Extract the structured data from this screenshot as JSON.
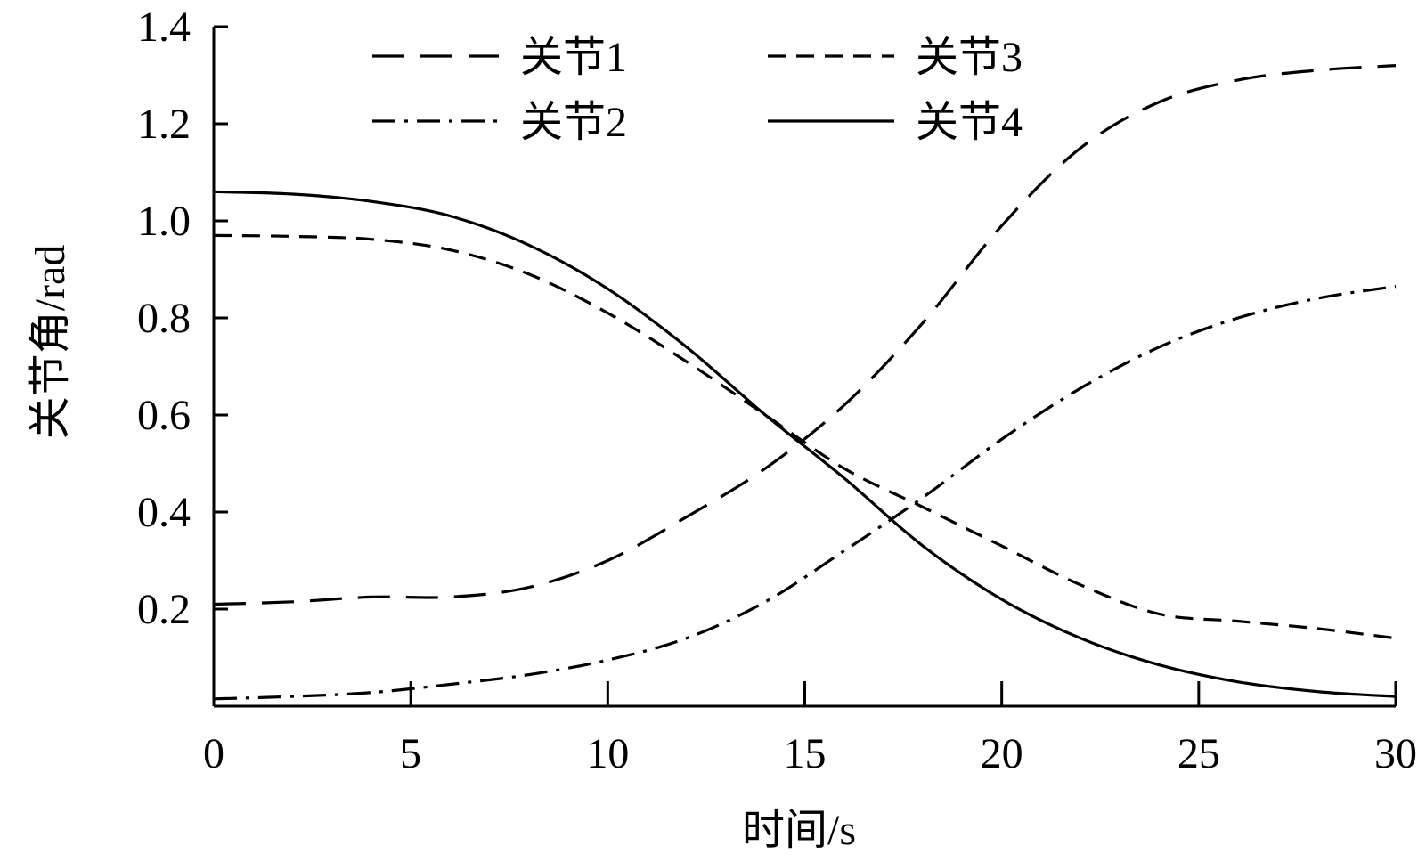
{
  "chart_data": {
    "type": "line",
    "title": "",
    "xlabel": "时间/s",
    "ylabel": "关节角/rad",
    "xlim": [
      0,
      30
    ],
    "ylim": [
      0,
      1.4
    ],
    "xticks": [
      0,
      5,
      10,
      15,
      20,
      25,
      30
    ],
    "xtick_labels": [
      "0",
      "5",
      "10",
      "15",
      "20",
      "25",
      "30"
    ],
    "yticks": [
      0.2,
      0.4,
      0.6,
      0.8,
      1.0,
      1.2,
      1.4
    ],
    "ytick_labels": [
      "0.2",
      "0.4",
      "0.6",
      "0.8",
      "1.0",
      "1.2",
      "1.4"
    ],
    "grid": false,
    "legend_position": "top",
    "series": [
      {
        "name": "关节1",
        "line_style": "long-dash",
        "x": [
          0,
          2,
          4,
          6,
          8,
          10,
          12,
          14,
          16,
          18,
          20,
          22,
          24,
          26,
          28,
          30
        ],
        "values": [
          0.21,
          0.215,
          0.225,
          0.225,
          0.245,
          0.3,
          0.39,
          0.49,
          0.62,
          0.79,
          0.99,
          1.15,
          1.245,
          1.29,
          1.31,
          1.32
        ]
      },
      {
        "name": "关节2",
        "line_style": "dash-dot",
        "x": [
          0,
          2,
          4,
          6,
          8,
          10,
          12,
          14,
          16,
          18,
          20,
          22,
          24,
          26,
          28,
          30
        ],
        "values": [
          0.015,
          0.02,
          0.028,
          0.045,
          0.065,
          0.095,
          0.14,
          0.215,
          0.32,
          0.43,
          0.55,
          0.655,
          0.74,
          0.8,
          0.84,
          0.865
        ]
      },
      {
        "name": "关节3",
        "line_style": "dash",
        "x": [
          0,
          2,
          4,
          6,
          8,
          10,
          12,
          14,
          16,
          18,
          20,
          22,
          24,
          26,
          28,
          30
        ],
        "values": [
          0.97,
          0.968,
          0.962,
          0.94,
          0.89,
          0.81,
          0.71,
          0.6,
          0.49,
          0.41,
          0.33,
          0.25,
          0.19,
          0.175,
          0.16,
          0.14
        ]
      },
      {
        "name": "关节4",
        "line_style": "solid",
        "x": [
          0,
          2,
          4,
          6,
          8,
          10,
          12,
          14,
          16,
          18,
          20,
          22,
          24,
          26,
          28,
          30
        ],
        "values": [
          1.06,
          1.055,
          1.04,
          1.01,
          0.95,
          0.86,
          0.74,
          0.6,
          0.47,
          0.33,
          0.22,
          0.14,
          0.085,
          0.05,
          0.03,
          0.02
        ]
      }
    ]
  }
}
